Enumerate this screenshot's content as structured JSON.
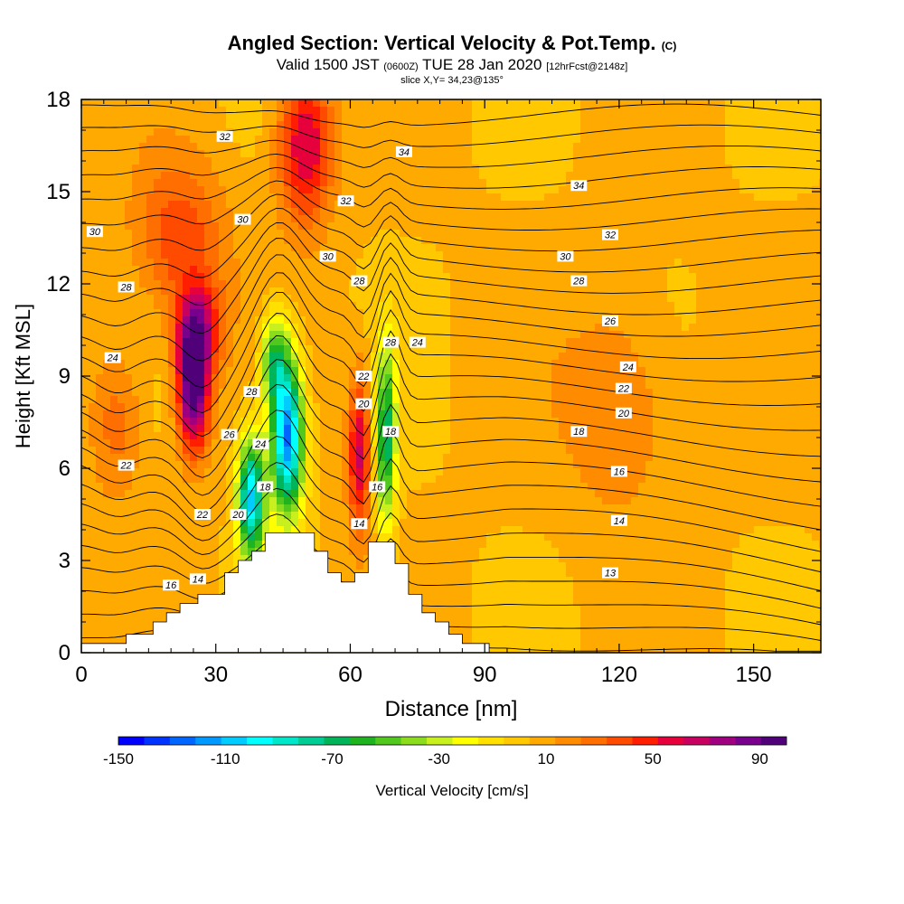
{
  "titles": {
    "main": "Angled Section: Vertical Velocity & Pot.Temp.",
    "main_suffix": "(C)",
    "valid_a": "Valid 1500 JST",
    "valid_small": "(0600Z)",
    "valid_b": "TUE 28 Jan 2020",
    "fcst": "[12hrFcst@2148z]",
    "slice": "slice X,Y= 34,23@135°"
  },
  "chart_data": {
    "type": "heatmap",
    "title": "Angled Section: Vertical Velocity & Pot.Temp.",
    "xlabel": "Distance [nm]",
    "ylabel": "Height [Kft MSL]",
    "xlim": [
      0,
      165
    ],
    "ylim": [
      0,
      18
    ],
    "x_ticks": [
      0,
      30,
      60,
      90,
      120,
      150
    ],
    "y_ticks": [
      0,
      3,
      6,
      9,
      12,
      15,
      18
    ],
    "colorbar": {
      "label": "Vertical Velocity [cm/s]",
      "tick_labels": [
        "-150",
        "-110",
        "-70",
        "-30",
        "10",
        "50",
        "90"
      ],
      "tick_values": [
        -150,
        -110,
        -70,
        -30,
        10,
        50,
        90
      ],
      "min": -150,
      "max": 100,
      "colors": [
        "#0000ff",
        "#0033ff",
        "#0066ff",
        "#0099ff",
        "#00ccff",
        "#00ffff",
        "#00e6c8",
        "#00cc96",
        "#00b45a",
        "#1fb41f",
        "#50c81e",
        "#8cdc1e",
        "#c8f01e",
        "#ffff00",
        "#ffe000",
        "#ffc800",
        "#ffaa00",
        "#ff8c00",
        "#ff6e00",
        "#ff4b00",
        "#ff1e00",
        "#e6003c",
        "#c80060",
        "#a00080",
        "#78008c",
        "#500078"
      ]
    },
    "vertical_velocity_features": [
      {
        "x": 25,
        "z": 8.5,
        "peak": 95,
        "sx": 3.5,
        "sz": 2.0
      },
      {
        "x": 26,
        "z": 10.5,
        "peak": 60,
        "sx": 5,
        "sz": 1.5
      },
      {
        "x": 22,
        "z": 13.5,
        "peak": 35,
        "sx": 10,
        "sz": 2.5
      },
      {
        "x": 8,
        "z": 7.5,
        "peak": 25,
        "sx": 6,
        "sz": 2.5
      },
      {
        "x": 50,
        "z": 16.5,
        "peak": 60,
        "sx": 6,
        "sz": 2.5
      },
      {
        "x": 46,
        "z": 7,
        "peak": -130,
        "sx": 3.5,
        "sz": 2.5
      },
      {
        "x": 38,
        "z": 5,
        "peak": -110,
        "sx": 3,
        "sz": 2
      },
      {
        "x": 43,
        "z": 9.5,
        "peak": -60,
        "sx": 3,
        "sz": 1.5
      },
      {
        "x": 62,
        "z": 6.5,
        "peak": 60,
        "sx": 2.5,
        "sz": 2.5
      },
      {
        "x": 68,
        "z": 7,
        "peak": -75,
        "sx": 2.2,
        "sz": 3
      },
      {
        "x": 120,
        "z": 8,
        "peak": 20,
        "sx": 12,
        "sz": 3.5
      }
    ],
    "potential_temperature_labels": [
      {
        "text": "32",
        "x": 32,
        "z": 16.8
      },
      {
        "text": "34",
        "x": 72,
        "z": 16.3
      },
      {
        "text": "34",
        "x": 111,
        "z": 15.2
      },
      {
        "text": "30",
        "x": 3,
        "z": 13.7
      },
      {
        "text": "30",
        "x": 36,
        "z": 14.1
      },
      {
        "text": "32",
        "x": 59,
        "z": 14.7
      },
      {
        "text": "32",
        "x": 118,
        "z": 13.6
      },
      {
        "text": "30",
        "x": 55,
        "z": 12.9
      },
      {
        "text": "30",
        "x": 108,
        "z": 12.9
      },
      {
        "text": "28",
        "x": 10,
        "z": 11.9
      },
      {
        "text": "28",
        "x": 62,
        "z": 12.1
      },
      {
        "text": "28",
        "x": 111,
        "z": 12.1
      },
      {
        "text": "26",
        "x": 118,
        "z": 10.8
      },
      {
        "text": "28",
        "x": 69,
        "z": 10.1
      },
      {
        "text": "24",
        "x": 75,
        "z": 10.1
      },
      {
        "text": "24",
        "x": 7,
        "z": 9.6
      },
      {
        "text": "24",
        "x": 122,
        "z": 9.3
      },
      {
        "text": "22",
        "x": 63,
        "z": 9.0
      },
      {
        "text": "22",
        "x": 121,
        "z": 8.6
      },
      {
        "text": "28",
        "x": 38,
        "z": 8.5
      },
      {
        "text": "20",
        "x": 63,
        "z": 8.1
      },
      {
        "text": "20",
        "x": 121,
        "z": 7.8
      },
      {
        "text": "26",
        "x": 33,
        "z": 7.1
      },
      {
        "text": "18",
        "x": 69,
        "z": 7.2
      },
      {
        "text": "18",
        "x": 111,
        "z": 7.2
      },
      {
        "text": "24",
        "x": 40,
        "z": 6.8
      },
      {
        "text": "22",
        "x": 10,
        "z": 6.1
      },
      {
        "text": "16",
        "x": 120,
        "z": 5.9
      },
      {
        "text": "18",
        "x": 41,
        "z": 5.4
      },
      {
        "text": "16",
        "x": 66,
        "z": 5.4
      },
      {
        "text": "22",
        "x": 27,
        "z": 4.5
      },
      {
        "text": "20",
        "x": 35,
        "z": 4.5
      },
      {
        "text": "14",
        "x": 62,
        "z": 4.2
      },
      {
        "text": "14",
        "x": 120,
        "z": 4.3
      },
      {
        "text": "13",
        "x": 118,
        "z": 2.6
      },
      {
        "text": "14",
        "x": 26,
        "z": 2.4
      },
      {
        "text": "16",
        "x": 20,
        "z": 2.2
      }
    ],
    "terrain": [
      [
        0,
        0.3
      ],
      [
        10,
        0.3
      ],
      [
        10,
        0.6
      ],
      [
        16,
        0.6
      ],
      [
        16,
        1.0
      ],
      [
        19,
        1.0
      ],
      [
        19,
        1.3
      ],
      [
        22,
        1.3
      ],
      [
        22,
        1.6
      ],
      [
        26,
        1.6
      ],
      [
        26,
        1.9
      ],
      [
        32,
        1.9
      ],
      [
        32,
        2.6
      ],
      [
        35,
        2.6
      ],
      [
        35,
        3.0
      ],
      [
        38,
        3.0
      ],
      [
        38,
        3.3
      ],
      [
        41,
        3.3
      ],
      [
        41,
        3.9
      ],
      [
        52,
        3.9
      ],
      [
        52,
        3.3
      ],
      [
        55,
        3.3
      ],
      [
        55,
        2.6
      ],
      [
        58,
        2.6
      ],
      [
        58,
        2.3
      ],
      [
        61,
        2.3
      ],
      [
        61,
        2.6
      ],
      [
        64,
        2.6
      ],
      [
        64,
        3.6
      ],
      [
        70,
        3.6
      ],
      [
        70,
        2.9
      ],
      [
        73,
        2.9
      ],
      [
        73,
        1.9
      ],
      [
        76,
        1.9
      ],
      [
        76,
        1.3
      ],
      [
        79,
        1.3
      ],
      [
        79,
        1.0
      ],
      [
        82,
        1.0
      ],
      [
        82,
        0.6
      ],
      [
        85,
        0.6
      ],
      [
        85,
        0.3
      ],
      [
        91,
        0.3
      ],
      [
        91,
        0
      ]
    ]
  }
}
